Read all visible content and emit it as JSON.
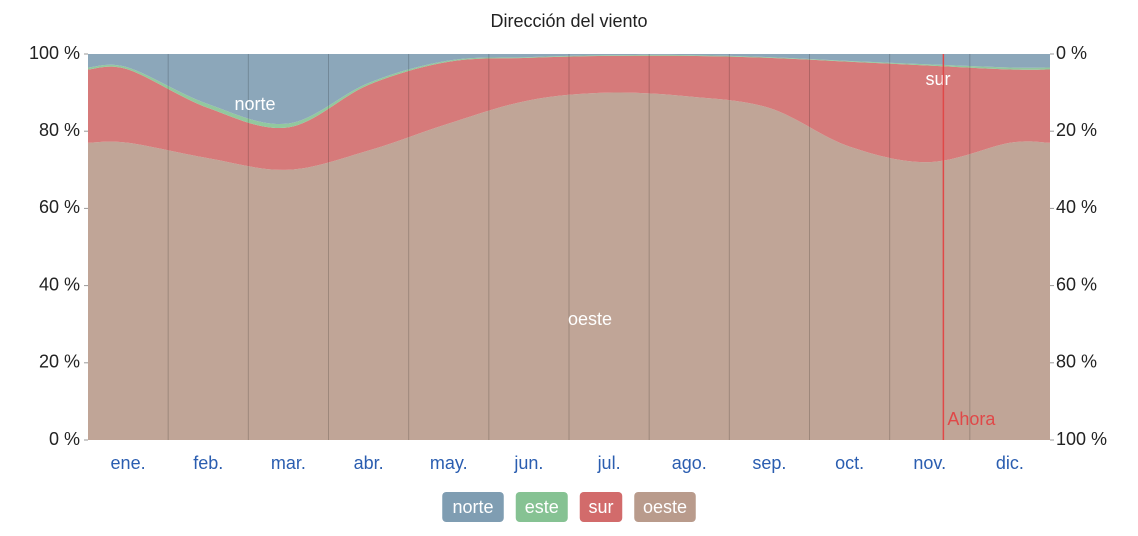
{
  "chart_data": {
    "type": "stacked_area",
    "title": "Dirección del viento",
    "categories": [
      "ene.",
      "feb.",
      "mar.",
      "abr.",
      "may.",
      "jun.",
      "jul.",
      "ago.",
      "sep.",
      "oct.",
      "nov.",
      "dic."
    ],
    "series": [
      {
        "name": "oeste",
        "color": "#b99b8c",
        "values": [
          77,
          73,
          70,
          75,
          82,
          88,
          90,
          89,
          86,
          76,
          72,
          77
        ]
      },
      {
        "name": "sur",
        "color": "#d26b6b",
        "values": [
          19,
          13,
          11,
          17,
          16,
          11,
          9.5,
          10.5,
          13,
          22,
          25,
          19
        ]
      },
      {
        "name": "este",
        "color": "#86c293",
        "values": [
          0.5,
          1,
          1,
          0.5,
          0.3,
          0.2,
          0.2,
          0.2,
          0.2,
          0.2,
          0.3,
          0.5
        ]
      },
      {
        "name": "norte",
        "color": "#7f9db2",
        "values": [
          3.5,
          13,
          18,
          7.5,
          1.7,
          0.8,
          0.3,
          0.3,
          0.8,
          1.8,
          2.7,
          3.5
        ]
      }
    ],
    "ylim": [
      0,
      100
    ],
    "yticks": [
      {
        "value": 0,
        "label": "0 %"
      },
      {
        "value": 20,
        "label": "20 %"
      },
      {
        "value": 40,
        "label": "40 %"
      },
      {
        "value": 60,
        "label": "60 %"
      },
      {
        "value": 80,
        "label": "80 %"
      },
      {
        "value": 100,
        "label": "100 %"
      }
    ],
    "y2lim": [
      100,
      0
    ],
    "y2ticks": [
      {
        "value": 100,
        "label": "100 %"
      },
      {
        "value": 80,
        "label": "80 %"
      },
      {
        "value": 60,
        "label": "60 %"
      },
      {
        "value": 40,
        "label": "40 %"
      },
      {
        "value": 20,
        "label": "20 %"
      },
      {
        "value": 0,
        "label": "0 %"
      }
    ],
    "area_labels": [
      "norte",
      "oeste",
      "sur"
    ],
    "now_marker": {
      "text": "Ahora",
      "x": 10.67
    }
  }
}
